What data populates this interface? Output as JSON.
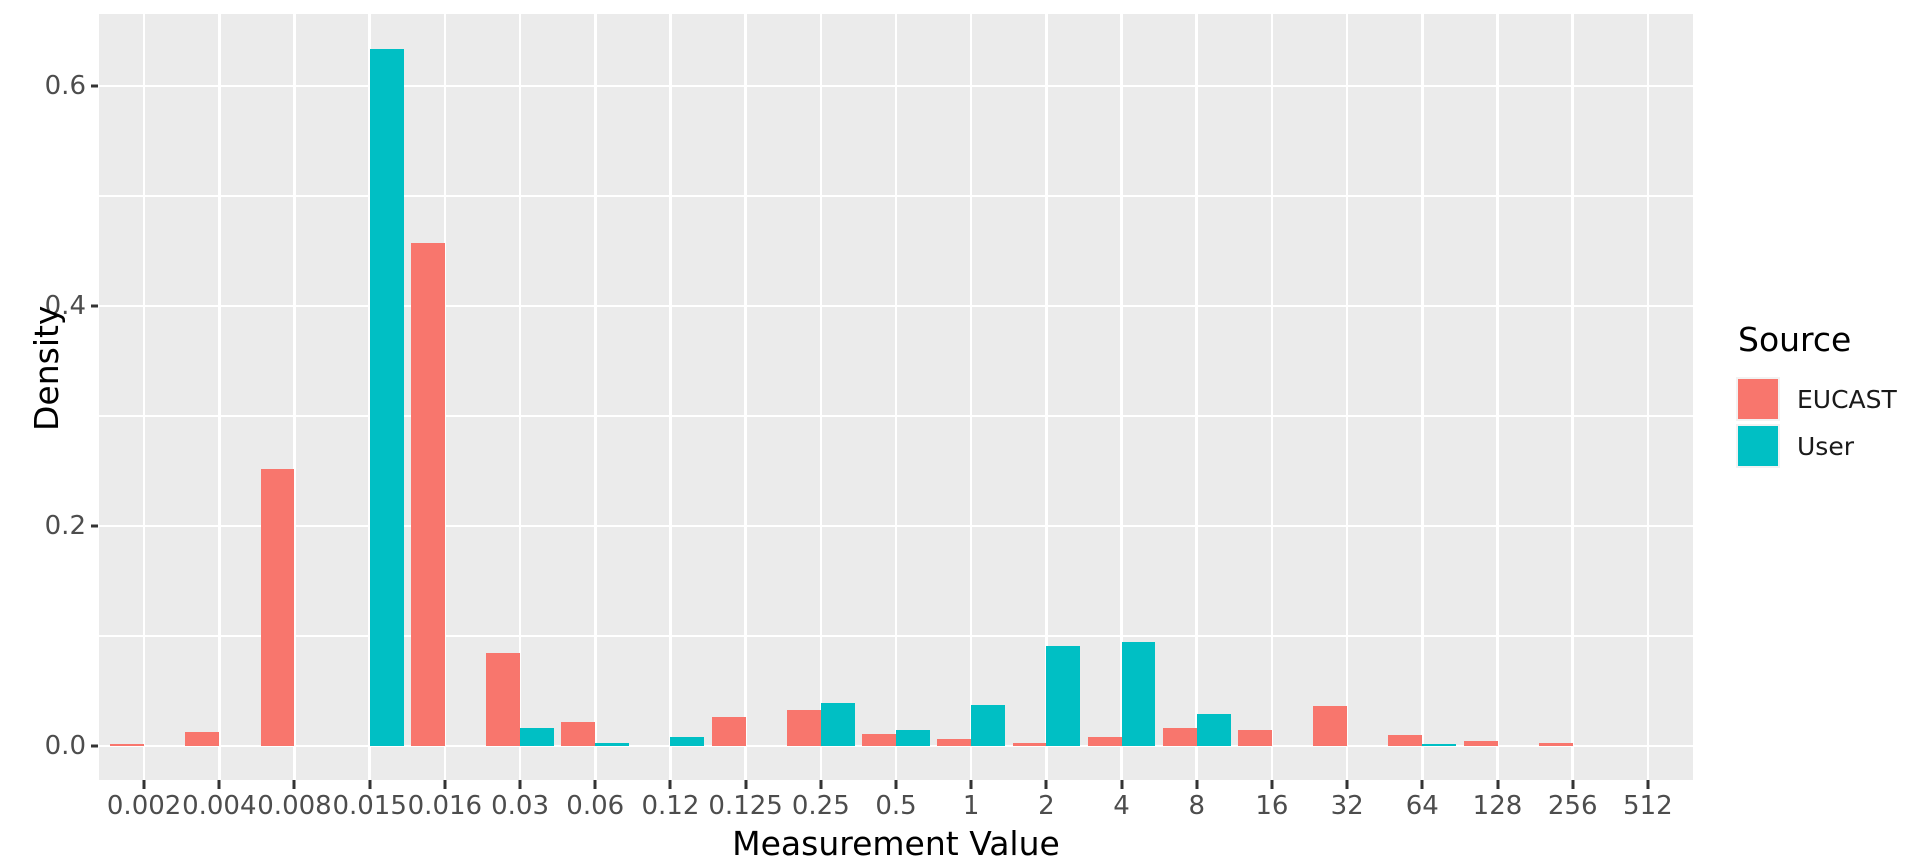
{
  "figure": {
    "y_axis": {
      "title": "Density",
      "tick_labels": [
        "0.0",
        "0.2",
        "0.4",
        "0.6"
      ],
      "tick_values": [
        0.0,
        0.2,
        0.4,
        0.6
      ],
      "minor_tick_values": [
        0.1,
        0.3,
        0.5
      ]
    },
    "x_axis": {
      "title": "Measurement Value"
    },
    "legend": {
      "title": "Source",
      "items": [
        {
          "label": "EUCAST",
          "color": "#F8766D"
        },
        {
          "label": "User",
          "color": "#00BFC4"
        }
      ]
    },
    "colors": {
      "eucast": "#F8766D",
      "user": "#00BFC4",
      "panel_background": "#EBEBEB",
      "gridline": "#FFFFFF",
      "tick_text": "#4D4D4D",
      "title_text": "#000000",
      "tick_mark": "#333333"
    }
  },
  "chart_data": {
    "type": "bar",
    "title": "",
    "xlabel": "Measurement Value",
    "ylabel": "Density",
    "legend_title": "Source",
    "legend_position": "right",
    "grid": true,
    "bar_mode": "dodge",
    "categories": [
      "0.002",
      "0.004",
      "0.008",
      "0.015",
      "0.016",
      "0.03",
      "0.06",
      "0.12",
      "0.125",
      "0.25",
      "0.5",
      "1",
      "2",
      "4",
      "8",
      "16",
      "32",
      "64",
      "128",
      "256",
      "512"
    ],
    "series": [
      {
        "name": "EUCAST",
        "color": "#F8766D",
        "values": [
          0.002,
          0.013,
          0.252,
          null,
          0.457,
          0.085,
          0.022,
          null,
          0.026,
          0.033,
          0.011,
          0.006,
          0.003,
          0.008,
          0.016,
          0.015,
          0.036,
          0.01,
          0.005,
          0.003,
          null
        ]
      },
      {
        "name": "User",
        "color": "#00BFC4",
        "values": [
          null,
          null,
          null,
          0.634,
          null,
          0.016,
          0.003,
          0.008,
          null,
          0.039,
          0.015,
          0.037,
          0.091,
          0.095,
          0.029,
          null,
          null,
          0.002,
          null,
          null,
          null
        ]
      }
    ],
    "ylim": [
      0,
      0.665
    ],
    "y_ticks": [
      0.0,
      0.2,
      0.4,
      0.6
    ]
  }
}
